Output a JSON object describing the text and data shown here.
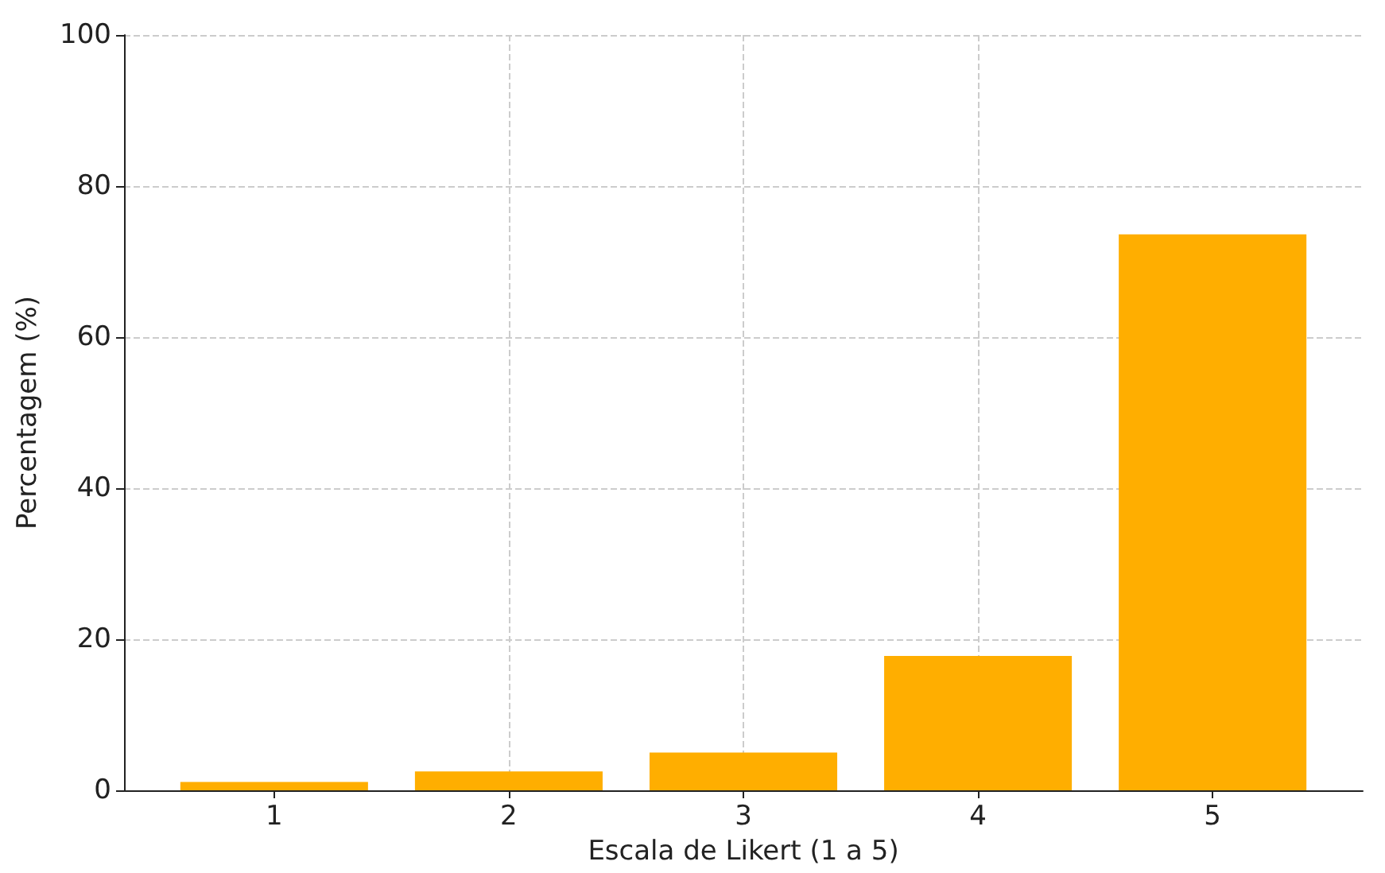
{
  "chart_data": {
    "type": "bar",
    "xlabel": "Escala de Likert (1 a 5)",
    "ylabel": "Percentagem (%)",
    "x": [
      1,
      2,
      3,
      4,
      5
    ],
    "values": [
      1.1,
      2.5,
      5.0,
      17.8,
      73.6
    ],
    "color": "#ffae00",
    "xlim": [
      0.36,
      5.64
    ],
    "xticks": [
      1,
      2,
      3,
      4,
      5
    ],
    "ylim": [
      0,
      100
    ],
    "yticks": [
      0,
      20,
      40,
      60,
      80,
      100
    ],
    "grid": true
  }
}
